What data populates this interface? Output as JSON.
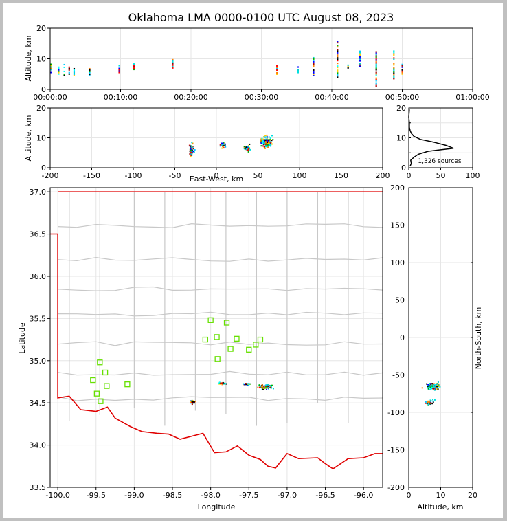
{
  "title": "Oklahoma LMA 0000-0100 UTC August 08, 2023",
  "chart_data": [
    {
      "panel": "time-altitude",
      "type": "scatter",
      "xlabel": "",
      "ylabel": "Altitude, km",
      "x_ticks": [
        "00:00:00",
        "00:10:00",
        "00:20:00",
        "00:30:00",
        "00:40:00",
        "00:50:00",
        "01:00:00"
      ],
      "xlim_minutes": [
        0,
        60
      ],
      "ylim": [
        0,
        20
      ],
      "y_ticks": [
        0,
        10,
        20
      ],
      "columns": [
        {
          "t": 0.1,
          "zmin": 5.5,
          "zmax": 8.5
        },
        {
          "t": 1.2,
          "zmin": 5.0,
          "zmax": 8.0
        },
        {
          "t": 2.0,
          "zmin": 4.5,
          "zmax": 8.5
        },
        {
          "t": 2.7,
          "zmin": 5.0,
          "zmax": 7.5
        },
        {
          "t": 3.4,
          "zmin": 4.5,
          "zmax": 7.0
        },
        {
          "t": 5.6,
          "zmin": 4.5,
          "zmax": 7.0
        },
        {
          "t": 9.8,
          "zmin": 5.5,
          "zmax": 8.0
        },
        {
          "t": 11.9,
          "zmin": 6.5,
          "zmax": 8.5
        },
        {
          "t": 17.4,
          "zmin": 7.0,
          "zmax": 10.0
        },
        {
          "t": 32.2,
          "zmin": 4.5,
          "zmax": 8.0
        },
        {
          "t": 35.2,
          "zmin": 5.5,
          "zmax": 7.5
        },
        {
          "t": 37.4,
          "zmin": 4.5,
          "zmax": 11.0
        },
        {
          "t": 40.8,
          "zmin": 4.0,
          "zmax": 16.0
        },
        {
          "t": 42.3,
          "zmin": 7.0,
          "zmax": 8.0
        },
        {
          "t": 44.0,
          "zmin": 7.5,
          "zmax": 12.5
        },
        {
          "t": 46.3,
          "zmin": 1.0,
          "zmax": 12.5
        },
        {
          "t": 48.8,
          "zmin": 3.5,
          "zmax": 13.0
        },
        {
          "t": 50.0,
          "zmin": 5.0,
          "zmax": 8.5
        }
      ]
    },
    {
      "panel": "eastwest-altitude",
      "type": "scatter",
      "xlabel": "East-West, km",
      "ylabel": "Altitude, km",
      "xlim": [
        -200,
        200
      ],
      "x_ticks": [
        -200,
        -150,
        -100,
        -50,
        0,
        50,
        100,
        150,
        200
      ],
      "ylim": [
        0,
        20
      ],
      "y_ticks": [
        0,
        10,
        20
      ],
      "clusters": [
        {
          "x": -30,
          "z": 6.0,
          "sx": 3,
          "sz": 2,
          "n": 60
        },
        {
          "x": 8,
          "z": 7.5,
          "sx": 4,
          "sz": 1,
          "n": 30
        },
        {
          "x": 37,
          "z": 6.5,
          "sx": 4,
          "sz": 1,
          "n": 40
        },
        {
          "x": 60,
          "z": 8.5,
          "sx": 7,
          "sz": 2,
          "n": 160
        }
      ]
    },
    {
      "panel": "altitude-histogram",
      "type": "line",
      "xlim": [
        0,
        100
      ],
      "x_ticks": [
        0,
        50,
        100
      ],
      "ylim": [
        0,
        20
      ],
      "y_ticks": [
        0,
        5,
        10,
        15,
        20
      ],
      "annotation": "1,326 sources",
      "profile": [
        {
          "z": 0.5,
          "n": 2
        },
        {
          "z": 1.5,
          "n": 4
        },
        {
          "z": 2.5,
          "n": 3
        },
        {
          "z": 3.5,
          "n": 8
        },
        {
          "z": 4.5,
          "n": 15
        },
        {
          "z": 5.5,
          "n": 30
        },
        {
          "z": 6.5,
          "n": 70
        },
        {
          "z": 7.5,
          "n": 58
        },
        {
          "z": 8.5,
          "n": 40
        },
        {
          "z": 9.5,
          "n": 18
        },
        {
          "z": 10.5,
          "n": 8
        },
        {
          "z": 11.5,
          "n": 4
        },
        {
          "z": 12.5,
          "n": 2
        },
        {
          "z": 13.5,
          "n": 1
        },
        {
          "z": 15.0,
          "n": 1
        },
        {
          "z": 17.0,
          "n": 0
        },
        {
          "z": 19.5,
          "n": 1
        }
      ]
    },
    {
      "panel": "plan-view",
      "type": "scatter",
      "xlabel": "Longitude",
      "ylabel": "Latitude",
      "xlim": [
        -100.1,
        -95.75
      ],
      "x_ticks": [
        -100.0,
        -99.5,
        -99.0,
        -98.5,
        -98.0,
        -97.5,
        -97.0,
        -96.5,
        -96.0
      ],
      "ylim": [
        33.5,
        37.05
      ],
      "y_ticks": [
        33.5,
        34.0,
        34.5,
        35.0,
        35.5,
        36.0,
        36.5,
        37.0
      ],
      "stations": [
        {
          "lon": -98.0,
          "lat": 35.48
        },
        {
          "lon": -97.79,
          "lat": 35.45
        },
        {
          "lon": -98.07,
          "lat": 35.25
        },
        {
          "lon": -97.92,
          "lat": 35.28
        },
        {
          "lon": -97.66,
          "lat": 35.26
        },
        {
          "lon": -97.35,
          "lat": 35.25
        },
        {
          "lon": -97.41,
          "lat": 35.19
        },
        {
          "lon": -97.74,
          "lat": 35.14
        },
        {
          "lon": -97.5,
          "lat": 35.13
        },
        {
          "lon": -97.91,
          "lat": 35.02
        },
        {
          "lon": -99.45,
          "lat": 34.98
        },
        {
          "lon": -99.38,
          "lat": 34.86
        },
        {
          "lon": -99.54,
          "lat": 34.77
        },
        {
          "lon": -99.36,
          "lat": 34.7
        },
        {
          "lon": -99.09,
          "lat": 34.72
        },
        {
          "lon": -99.49,
          "lat": 34.61
        },
        {
          "lon": -99.44,
          "lat": 34.52
        }
      ],
      "clusters": [
        {
          "lon": -98.24,
          "lat": 34.51,
          "slon": 0.04,
          "slat": 0.02,
          "n": 40
        },
        {
          "lon": -97.85,
          "lat": 34.73,
          "slon": 0.05,
          "slat": 0.01,
          "n": 30
        },
        {
          "lon": -97.52,
          "lat": 34.72,
          "slon": 0.05,
          "slat": 0.01,
          "n": 25
        },
        {
          "lon": -97.28,
          "lat": 34.69,
          "slon": 0.08,
          "slat": 0.025,
          "n": 120
        }
      ]
    },
    {
      "panel": "altitude-northsouth",
      "type": "scatter",
      "xlabel": "Altitude, km",
      "ylabel": "North-South, km",
      "xlim": [
        0,
        20
      ],
      "x_ticks": [
        0,
        10,
        20
      ],
      "ylim": [
        -200,
        200
      ],
      "y_ticks": [
        -200,
        -150,
        -100,
        -50,
        0,
        50,
        100,
        150,
        200
      ],
      "clusters": [
        {
          "z": 7.5,
          "y": -65,
          "sz": 2.0,
          "sy": 4,
          "n": 140
        },
        {
          "z": 6.5,
          "y": -87,
          "sz": 1.3,
          "sy": 3,
          "n": 40
        }
      ]
    }
  ]
}
